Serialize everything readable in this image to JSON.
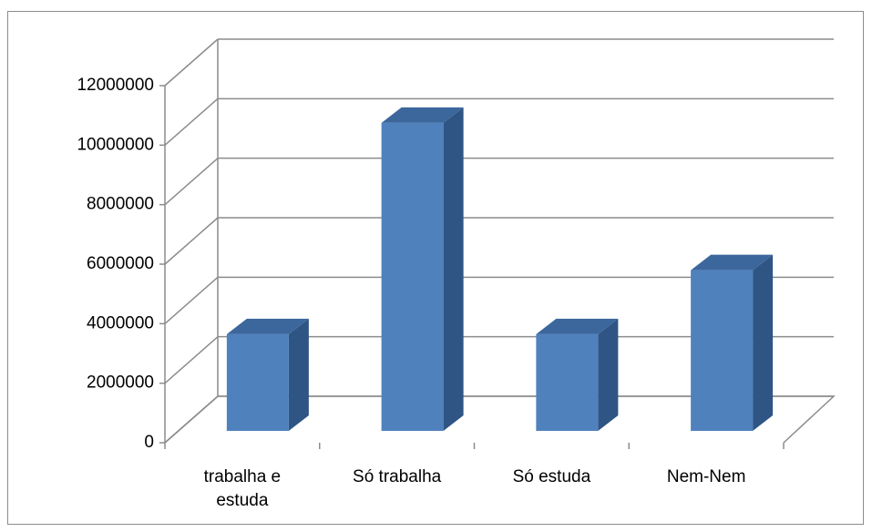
{
  "chart_data": {
    "type": "bar3d",
    "categories": [
      "trabalha e estuda",
      "Só trabalha",
      "Só estuda",
      "Nem-Nem"
    ],
    "values": [
      3250000,
      10350000,
      3250000,
      5400000
    ],
    "color": "#4f81bd",
    "ylim": [
      0,
      12000000
    ],
    "yticks": [
      0,
      2000000,
      4000000,
      6000000,
      8000000,
      10000000,
      12000000
    ],
    "grid": true
  }
}
